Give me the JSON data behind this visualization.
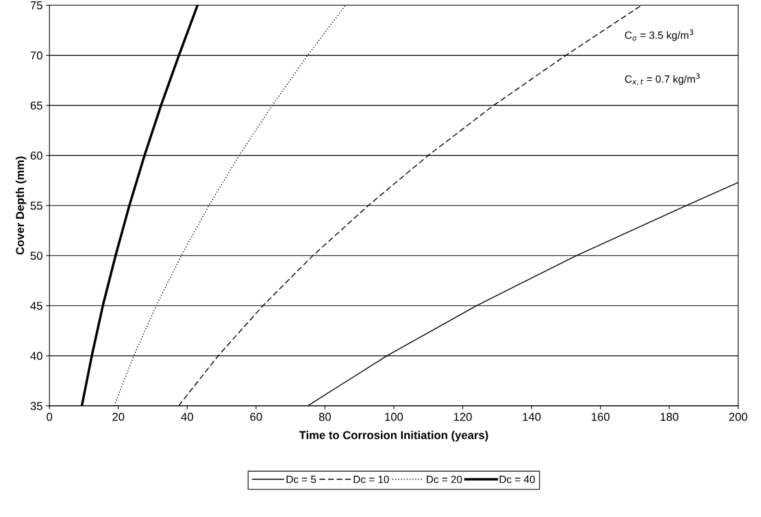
{
  "chart_data": {
    "type": "line",
    "xlabel": "Time to Corrosion Initiation (years)",
    "ylabel": "Cover Depth (mm)",
    "xlim": [
      0,
      200
    ],
    "xticks": [
      0,
      20,
      40,
      60,
      80,
      100,
      120,
      140,
      160,
      180,
      200
    ],
    "ylim": [
      35,
      75
    ],
    "yticks": [
      35,
      40,
      45,
      50,
      55,
      60,
      65,
      70,
      75
    ],
    "grid": "y",
    "legend": "bottom",
    "marker": "none",
    "annotations": [
      "C$_{o}$ = 3.5 kg/m$^{3}$",
      "C$_{x,t}$ = 0.7 kg/m$^{3}$"
    ],
    "series": [
      {
        "name": "Dc = 5",
        "color": "#000000",
        "line_style": "solid",
        "x": [
          75,
          98,
          124,
          153,
          185,
          200
        ],
        "values": [
          35,
          40,
          45,
          50,
          55,
          57.3
        ]
      },
      {
        "name": "Dc = 10",
        "color": "#000000",
        "line_style": "dashed",
        "x": [
          37.5,
          49,
          62,
          76.5,
          92.6,
          110,
          129,
          150,
          172
        ],
        "values": [
          35,
          40,
          45,
          50,
          55,
          60,
          65,
          70,
          75
        ]
      },
      {
        "name": "Dc = 20",
        "color": "#000000",
        "line_style": "dotted",
        "x": [
          18.8,
          24.5,
          31,
          38.3,
          46.3,
          55.1,
          64.7,
          75,
          86
        ],
        "values": [
          35,
          40,
          45,
          50,
          55,
          60,
          65,
          70,
          75
        ]
      },
      {
        "name": "Dc = 40",
        "color": "#000000",
        "line_style": "solid",
        "x": [
          9.4,
          12.3,
          15.5,
          19.2,
          23.2,
          27.6,
          32.4,
          37.6,
          43
        ],
        "values": [
          35,
          40,
          45,
          50,
          55,
          60,
          65,
          70,
          75
        ]
      }
    ]
  }
}
